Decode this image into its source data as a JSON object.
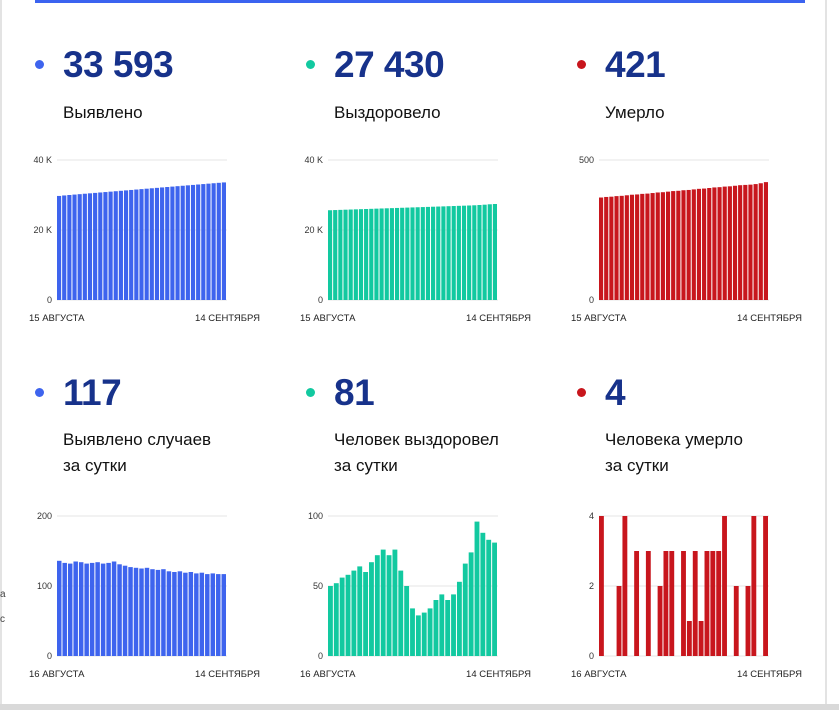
{
  "colors": {
    "blue": "#3e64ee",
    "green": "#12c9a0",
    "red": "#c8161d",
    "value": "#17328b"
  },
  "cards": [
    {
      "value": "33 593",
      "label": [
        "Выявлено"
      ],
      "color": "#3e64ee"
    },
    {
      "value": "27 430",
      "label": [
        "Выздоровело"
      ],
      "color": "#12c9a0"
    },
    {
      "value": "421",
      "label": [
        "Умерло"
      ],
      "color": "#c8161d"
    },
    {
      "value": "117",
      "label": [
        "Выявлено случаев",
        "за сутки"
      ],
      "color": "#3e64ee"
    },
    {
      "value": "81",
      "label": [
        "Человек выздоровел",
        "за сутки"
      ],
      "color": "#12c9a0"
    },
    {
      "value": "4",
      "label": [
        "Человека умерло",
        "за сутки"
      ],
      "color": "#c8161d"
    }
  ],
  "chart_data": [
    {
      "type": "bar",
      "title": "Выявлено",
      "ylim": [
        0,
        40000
      ],
      "yticks": [
        "0",
        "20 K",
        "40 K"
      ],
      "ytick_values": [
        0,
        20000,
        40000
      ],
      "x_start": "15 АВГУСТА",
      "x_end": "14 СЕНТЯБРЯ",
      "values": [
        29730,
        29870,
        30000,
        30120,
        30240,
        30360,
        30480,
        30600,
        30720,
        30840,
        30960,
        31080,
        31200,
        31320,
        31440,
        31560,
        31680,
        31800,
        31920,
        32040,
        32160,
        32280,
        32400,
        32520,
        32640,
        32760,
        32880,
        33000,
        33120,
        33240,
        33360,
        33476,
        33593
      ]
    },
    {
      "type": "bar",
      "title": "Выздоровело",
      "ylim": [
        0,
        40000
      ],
      "yticks": [
        "0",
        "20 K",
        "40 K"
      ],
      "ytick_values": [
        0,
        20000,
        40000
      ],
      "x_start": "15 АВГУСТА",
      "x_end": "14 СЕНТЯБРЯ",
      "values": [
        25650,
        25700,
        25750,
        25800,
        25850,
        25900,
        25950,
        26000,
        26050,
        26100,
        26150,
        26200,
        26250,
        26300,
        26350,
        26400,
        26450,
        26500,
        26550,
        26600,
        26650,
        26700,
        26750,
        26800,
        26850,
        26900,
        26950,
        27000,
        27060,
        27140,
        27230,
        27349,
        27430
      ]
    },
    {
      "type": "bar",
      "title": "Умерло",
      "ylim": [
        0,
        500
      ],
      "yticks": [
        "0",
        "500"
      ],
      "ytick_values": [
        0,
        500
      ],
      "x_start": "15 АВГУСТА",
      "x_end": "14 СЕНТЯБРЯ",
      "values": [
        366,
        368,
        369,
        371,
        372,
        374,
        376,
        377,
        379,
        380,
        382,
        384,
        385,
        387,
        389,
        390,
        392,
        393,
        395,
        397,
        398,
        400,
        402,
        403,
        405,
        406,
        408,
        410,
        411,
        412,
        414,
        417,
        421
      ]
    },
    {
      "type": "bar",
      "title": "Выявлено случаев за сутки",
      "ylim": [
        0,
        200
      ],
      "yticks": [
        "0",
        "100",
        "200"
      ],
      "ytick_values": [
        0,
        100,
        200
      ],
      "x_start": "16 АВГУСТА",
      "x_end": "14 СЕНТЯБРЯ",
      "values": [
        136,
        133,
        132,
        135,
        134,
        132,
        133,
        134,
        132,
        133,
        135,
        131,
        129,
        127,
        126,
        125,
        126,
        124,
        123,
        124,
        121,
        120,
        121,
        119,
        120,
        118,
        119,
        117,
        118,
        117,
        117
      ]
    },
    {
      "type": "bar",
      "title": "Человек выздоровел за сутки",
      "ylim": [
        0,
        100
      ],
      "yticks": [
        "0",
        "50",
        "100"
      ],
      "ytick_values": [
        0,
        50,
        100
      ],
      "x_start": "16 АВГУСТА",
      "x_end": "14 СЕНТЯБРЯ",
      "values": [
        50,
        52,
        56,
        58,
        61,
        64,
        60,
        67,
        72,
        76,
        72,
        76,
        61,
        50,
        34,
        29,
        31,
        34,
        40,
        44,
        40,
        44,
        53,
        66,
        74,
        96,
        88,
        83,
        81
      ]
    },
    {
      "type": "bar",
      "title": "Человека умерло за сутки",
      "ylim": [
        0,
        4
      ],
      "yticks": [
        "0",
        "2",
        "4"
      ],
      "ytick_values": [
        0,
        2,
        4
      ],
      "x_start": "16 АВГУСТА",
      "x_end": "14 СЕНТЯБРЯ",
      "values": [
        4,
        0,
        0,
        2,
        4,
        0,
        3,
        0,
        3,
        0,
        2,
        3,
        3,
        0,
        3,
        1,
        3,
        1,
        3,
        3,
        3,
        4,
        0,
        2,
        0,
        2,
        4,
        0,
        4
      ]
    }
  ],
  "stray_text": [
    "а",
    "с"
  ]
}
